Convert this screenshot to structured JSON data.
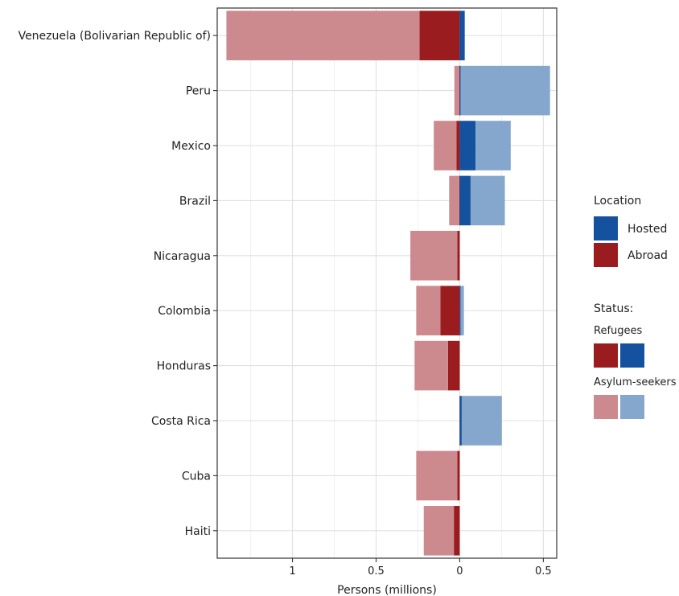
{
  "chart_data": {
    "type": "bar",
    "orientation": "horizontal-diverging",
    "xlabel": "Persons (millions)",
    "x_axis_note": "values to the left of 0 are persons abroad; to the right, persons hosted",
    "xlim": [
      -1.45,
      0.58
    ],
    "x_ticks": [
      -1,
      -0.5,
      0,
      0.5
    ],
    "x_tick_labels": [
      "1",
      "0.5",
      "0",
      "0.5"
    ],
    "grid": true,
    "legend_placement": "right",
    "categories": [
      "Venezuela (Bolivarian Republic of)",
      "Peru",
      "Mexico",
      "Brazil",
      "Nicaragua",
      "Colombia",
      "Honduras",
      "Costa Rica",
      "Cuba",
      "Haiti"
    ],
    "series": [
      {
        "name": "Refugees",
        "location": "Abroad",
        "color": "#9B1C1F",
        "values": [
          0.24,
          0.002,
          0.02,
          0.003,
          0.015,
          0.115,
          0.07,
          0.001,
          0.015,
          0.035
        ]
      },
      {
        "name": "Asylum-seekers",
        "location": "Abroad",
        "color": "#CC8A8E",
        "values": [
          1.155,
          0.03,
          0.135,
          0.06,
          0.28,
          0.145,
          0.2,
          0.0,
          0.245,
          0.18
        ]
      },
      {
        "name": "Refugees",
        "location": "Hosted",
        "color": "#1452A0",
        "values": [
          0.03,
          0.005,
          0.095,
          0.065,
          0.0,
          0.005,
          0.0,
          0.012,
          0.0,
          0.0
        ]
      },
      {
        "name": "Asylum-seekers",
        "location": "Hosted",
        "color": "#85A6CD",
        "values": [
          0.0,
          0.535,
          0.21,
          0.205,
          0.0,
          0.02,
          0.0,
          0.24,
          0.0,
          0.0
        ]
      }
    ]
  },
  "legend": {
    "location_title": "Location",
    "location_items": [
      {
        "label": "Hosted",
        "color": "#1452A0"
      },
      {
        "label": "Abroad",
        "color": "#9B1C1F"
      }
    ],
    "status_title": "Status:",
    "status_items": [
      {
        "label": "Refugees",
        "colors": [
          "#9B1C1F",
          "#1452A0"
        ]
      },
      {
        "label": "Asylum-seekers",
        "colors": [
          "#CC8A8E",
          "#85A6CD"
        ]
      }
    ]
  }
}
